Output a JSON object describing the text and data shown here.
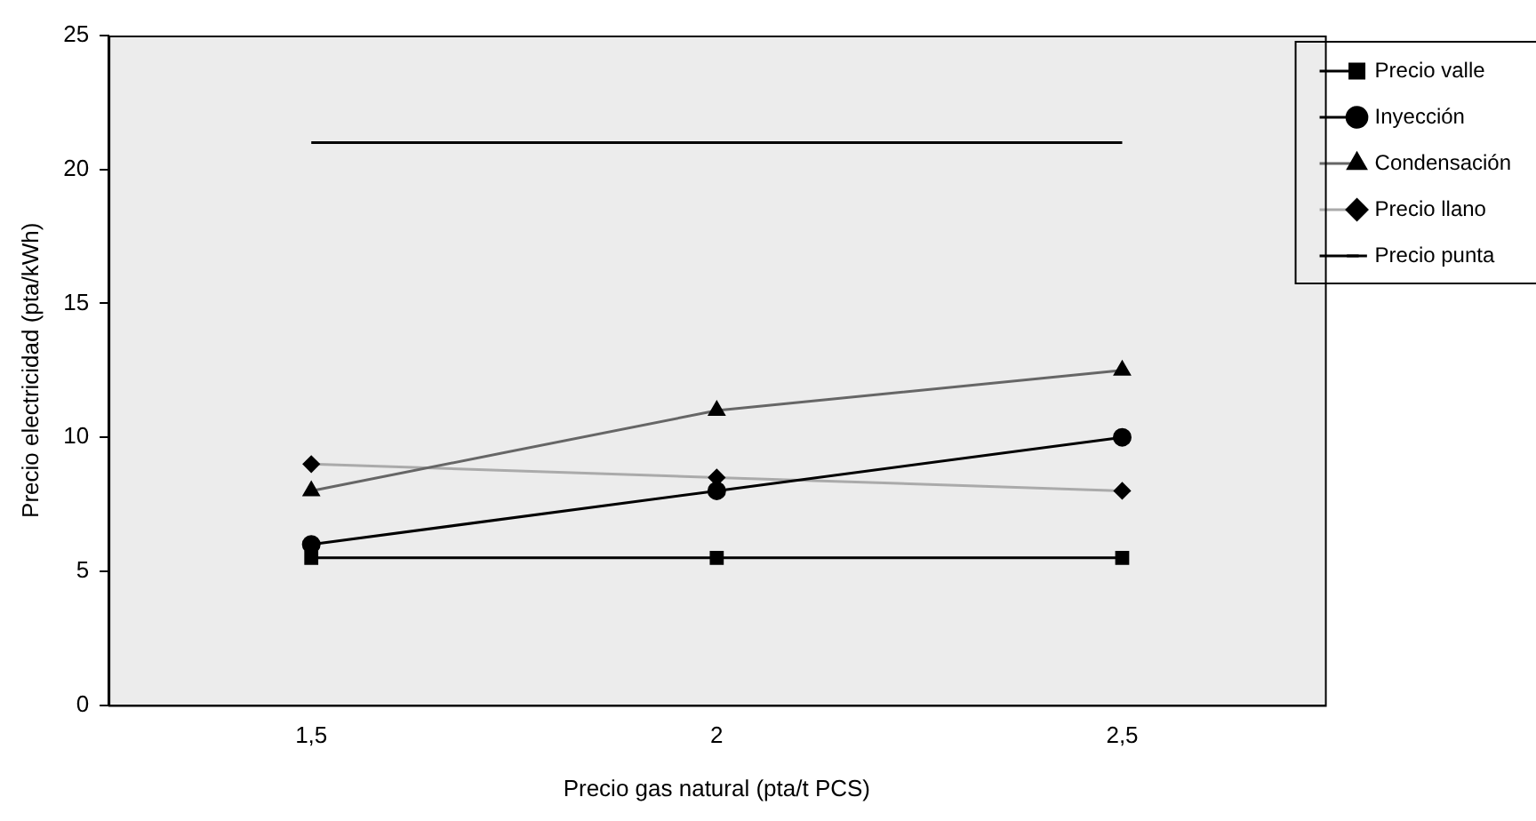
{
  "chart_data": {
    "type": "line",
    "xlabel": "Precio gas natural (pta/t PCS)",
    "ylabel": "Precio electricidad (pta/kWh)",
    "categories": [
      "1,5",
      "2",
      "2,5"
    ],
    "series": [
      {
        "name": "Precio valle",
        "color": "#000000",
        "marker": "square",
        "values": [
          5.5,
          5.5,
          5.5
        ]
      },
      {
        "name": "Inyección",
        "color": "#000000",
        "marker": "circle",
        "values": [
          6,
          8,
          10
        ]
      },
      {
        "name": "Condensación",
        "color": "#666666",
        "marker": "triangle",
        "values": [
          8,
          11,
          12.5
        ]
      },
      {
        "name": "Precio llano",
        "color": "#aaaaaa",
        "marker": "diamond",
        "values": [
          9,
          8.5,
          8
        ]
      },
      {
        "name": "Precio punta",
        "color": "#000000",
        "marker": "none",
        "values": [
          21,
          21,
          21
        ]
      }
    ],
    "ylim": [
      0,
      25
    ],
    "yticks": [
      0,
      5,
      10,
      15,
      20,
      25
    ],
    "grid": false,
    "legend": "right",
    "line_style": "solid"
  }
}
